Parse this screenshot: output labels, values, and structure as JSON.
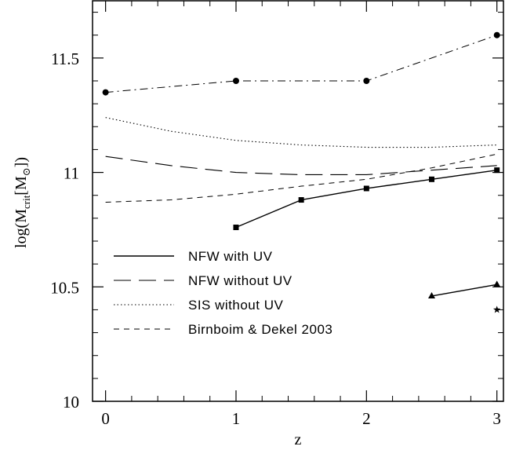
{
  "chart_data": {
    "type": "line",
    "xlabel": "z",
    "ylabel_main": "log(M",
    "ylabel_sub1": "crit",
    "ylabel_mid": "[M",
    "ylabel_sub2": "⊙",
    "ylabel_end": "])",
    "xlim": [
      -0.1,
      3.05
    ],
    "ylim": [
      10,
      11.75
    ],
    "x_ticks": [
      0,
      1,
      2,
      3
    ],
    "x_tick_labels": [
      "0",
      "1",
      "2",
      "3"
    ],
    "y_ticks": [
      10,
      10.5,
      11,
      11.5
    ],
    "y_tick_labels": [
      "10",
      "10.5",
      "11",
      "11.5"
    ],
    "legend_position": "bottom-left",
    "series": [
      {
        "name": "NFW with UV",
        "style": "solid",
        "marker": "square",
        "x": [
          1,
          1.5,
          2,
          2.5,
          3
        ],
        "y": [
          10.76,
          10.88,
          10.93,
          10.97,
          11.01
        ]
      },
      {
        "name": "NFW without UV",
        "style": "longdash",
        "x": [
          0,
          0.5,
          1,
          1.5,
          2,
          2.5,
          3
        ],
        "y": [
          11.07,
          11.03,
          11.0,
          10.99,
          10.99,
          11.01,
          11.03
        ]
      },
      {
        "name": "SIS without UV",
        "style": "dotted",
        "x": [
          0,
          0.5,
          1,
          1.5,
          2,
          2.5,
          3
        ],
        "y": [
          11.24,
          11.18,
          11.14,
          11.12,
          11.11,
          11.11,
          11.12
        ]
      },
      {
        "name": "Birnboim & Dekel 2003",
        "style": "shortdash",
        "x": [
          0,
          0.5,
          1,
          1.5,
          2,
          2.5,
          3
        ],
        "y": [
          10.87,
          10.88,
          10.905,
          10.94,
          10.97,
          11.02,
          11.08
        ]
      },
      {
        "style": "dashdot",
        "marker": "circle",
        "x": [
          0,
          1,
          2,
          3
        ],
        "y": [
          11.35,
          11.4,
          11.4,
          11.6
        ]
      },
      {
        "style": "solid",
        "marker": "triangle",
        "x": [
          2.5,
          3
        ],
        "y": [
          10.46,
          10.51
        ]
      },
      {
        "style": "none",
        "marker": "star",
        "x": [
          3
        ],
        "y": [
          10.4
        ]
      }
    ]
  }
}
